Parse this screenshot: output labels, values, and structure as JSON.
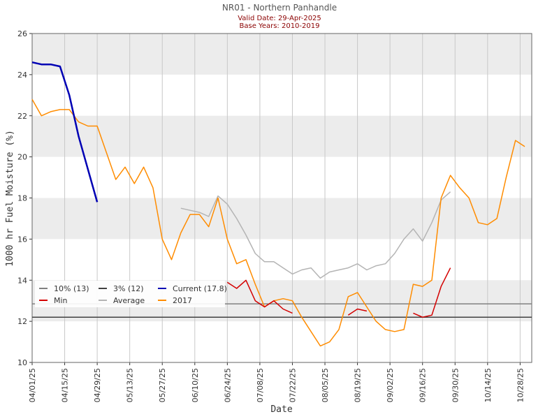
{
  "chart_data": {
    "type": "line",
    "title": "NR01 - Northern Panhandle",
    "subtitle": [
      "Valid Date: 29-Apr-2025",
      "Base Years: 2010-2019"
    ],
    "xlabel": "Date",
    "ylabel": "1000 hr Fuel Moisture (%)",
    "x": [
      "2025-04-01",
      "2025-04-05",
      "2025-04-09",
      "2025-04-13",
      "2025-04-17",
      "2025-04-21",
      "2025-04-25",
      "2025-04-29",
      "2025-05-03",
      "2025-05-07",
      "2025-05-11",
      "2025-05-15",
      "2025-05-19",
      "2025-05-23",
      "2025-05-27",
      "2025-05-31",
      "2025-06-04",
      "2025-06-08",
      "2025-06-12",
      "2025-06-16",
      "2025-06-20",
      "2025-06-24",
      "2025-06-28",
      "2025-07-02",
      "2025-07-06",
      "2025-07-10",
      "2025-07-14",
      "2025-07-18",
      "2025-07-22",
      "2025-07-26",
      "2025-07-30",
      "2025-08-03",
      "2025-08-07",
      "2025-08-11",
      "2025-08-15",
      "2025-08-19",
      "2025-08-23",
      "2025-08-27",
      "2025-08-31",
      "2025-09-04",
      "2025-09-08",
      "2025-09-12",
      "2025-09-16",
      "2025-09-20",
      "2025-09-24",
      "2025-09-28",
      "2025-10-02",
      "2025-10-06",
      "2025-10-10",
      "2025-10-14",
      "2025-10-18",
      "2025-10-22",
      "2025-10-26",
      "2025-10-30"
    ],
    "xlim": [
      "2025-04-01",
      "2025-11-02"
    ],
    "xticks": [
      {
        "value": "2025-04-01",
        "label": "04/01/25"
      },
      {
        "value": "2025-04-15",
        "label": "04/15/25"
      },
      {
        "value": "2025-04-29",
        "label": "04/29/25"
      },
      {
        "value": "2025-05-13",
        "label": "05/13/25"
      },
      {
        "value": "2025-05-27",
        "label": "05/27/25"
      },
      {
        "value": "2025-06-10",
        "label": "06/10/25"
      },
      {
        "value": "2025-06-24",
        "label": "06/24/25"
      },
      {
        "value": "2025-07-08",
        "label": "07/08/25"
      },
      {
        "value": "2025-07-22",
        "label": "07/22/25"
      },
      {
        "value": "2025-08-05",
        "label": "08/05/25"
      },
      {
        "value": "2025-08-19",
        "label": "08/19/25"
      },
      {
        "value": "2025-09-02",
        "label": "09/02/25"
      },
      {
        "value": "2025-09-16",
        "label": "09/16/25"
      },
      {
        "value": "2025-09-30",
        "label": "09/30/25"
      },
      {
        "value": "2025-10-14",
        "label": "10/14/25"
      },
      {
        "value": "2025-10-28",
        "label": "10/28/25"
      }
    ],
    "ylim": [
      10,
      26
    ],
    "yticks": [
      10,
      12,
      14,
      16,
      18,
      20,
      22,
      24,
      26
    ],
    "grid": true,
    "legend": "lower left",
    "reference_lines": [
      {
        "name": "10% (13)",
        "color": "#808080",
        "value": 12.85
      },
      {
        "name": "3% (12)",
        "color": "#404040",
        "value": 12.2
      }
    ],
    "series": [
      {
        "name": "Current (17.8)",
        "color": "#0000b4",
        "values": [
          24.6,
          24.5,
          24.5,
          24.4,
          23.0,
          21.0,
          19.4,
          17.8,
          null,
          null,
          null,
          null,
          null,
          null,
          null,
          null,
          null,
          null,
          null,
          null,
          null,
          null,
          null,
          null,
          null,
          null,
          null,
          null,
          null,
          null,
          null,
          null,
          null,
          null,
          null,
          null,
          null,
          null,
          null,
          null,
          null,
          null,
          null,
          null,
          null,
          null,
          null,
          null,
          null,
          null,
          null,
          null,
          null,
          null
        ]
      },
      {
        "name": "Min",
        "color": "#d40000",
        "values": [
          null,
          null,
          null,
          null,
          null,
          null,
          null,
          null,
          null,
          null,
          null,
          null,
          null,
          null,
          null,
          null,
          null,
          null,
          null,
          null,
          null,
          13.9,
          13.6,
          14.0,
          13.0,
          12.7,
          13.0,
          12.6,
          12.4,
          null,
          null,
          null,
          null,
          null,
          12.3,
          12.6,
          12.5,
          null,
          null,
          null,
          null,
          12.4,
          12.2,
          12.3,
          13.7,
          14.6,
          null,
          null,
          null,
          null,
          null,
          null,
          null,
          null
        ]
      },
      {
        "name": "Average",
        "color": "#b4b4b4",
        "values": [
          null,
          null,
          null,
          null,
          null,
          null,
          null,
          null,
          null,
          null,
          null,
          null,
          null,
          null,
          null,
          null,
          17.5,
          17.4,
          17.3,
          17.1,
          18.1,
          17.7,
          17.0,
          16.2,
          15.3,
          14.9,
          14.9,
          14.6,
          14.3,
          14.5,
          14.6,
          14.1,
          14.4,
          14.5,
          14.6,
          14.8,
          14.5,
          14.7,
          14.8,
          15.3,
          16.0,
          16.5,
          15.9,
          16.8,
          17.9,
          18.3,
          null,
          null,
          null,
          null,
          null,
          null,
          null,
          null
        ]
      },
      {
        "name": "2017",
        "color": "#ff8c00",
        "values": [
          22.8,
          22.0,
          22.2,
          22.3,
          22.3,
          21.7,
          21.5,
          21.5,
          20.2,
          18.9,
          19.5,
          18.7,
          19.5,
          18.5,
          16.0,
          15.0,
          16.3,
          17.2,
          17.2,
          16.6,
          18.0,
          16.0,
          14.8,
          15.0,
          13.8,
          12.7,
          13.0,
          13.1,
          13.0,
          12.2,
          11.5,
          10.8,
          11.0,
          11.6,
          13.2,
          13.4,
          12.7,
          12.0,
          11.6,
          11.5,
          11.6,
          13.8,
          13.7,
          14.0,
          18.0,
          19.1,
          18.5,
          18.0,
          16.8,
          16.7,
          17.0,
          19.0,
          20.8,
          20.5
        ]
      }
    ]
  }
}
